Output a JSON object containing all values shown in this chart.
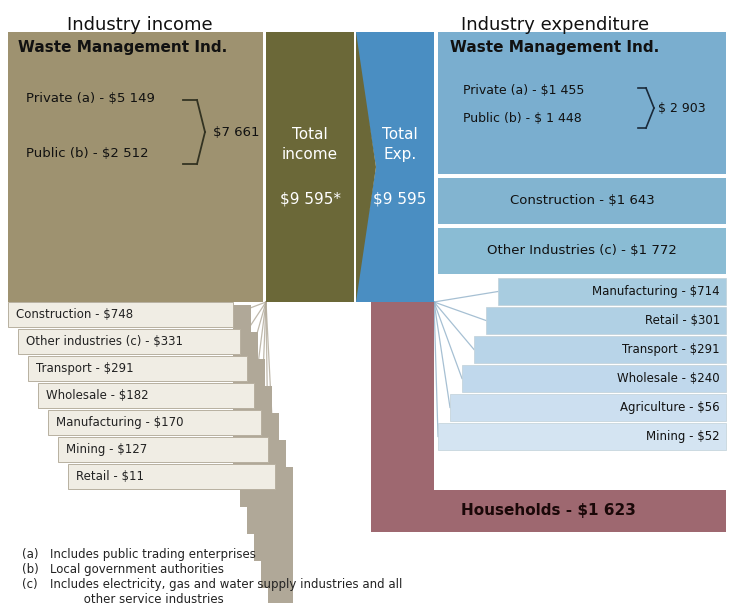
{
  "title_left": "Industry income",
  "title_right": "Industry expenditure",
  "bg_color": "#ffffff",
  "left_big_box_color": "#9e9270",
  "left_big_box_title": "Waste Management Ind.",
  "left_big_item1": "Private (a) - $5 149",
  "left_big_item2": "Public (b) - $2 512",
  "left_big_brace_label": "$7 661",
  "center_left_color": "#6b6838",
  "center_left_l1": "Total",
  "center_left_l2": "income",
  "center_left_l3": "$9 595*",
  "center_right_color": "#4a8ec2",
  "center_right_l1": "Total",
  "center_right_l2": "Exp.",
  "center_right_l3": "$9 595",
  "right_big_box_color": "#7aaecf",
  "right_big_title": "Waste Management Ind.",
  "right_big_item1": "Private (a) - $1 455",
  "right_big_item2": "Public (b) - $ 1 448",
  "right_big_brace": "$ 2 903",
  "right_construction_color": "#82b4d0",
  "right_construction_label": "Construction - $1 643",
  "right_other_color": "#8abcd4",
  "right_other_label": "Other Industries (c) - $1 772",
  "right_small_items": [
    {
      "label": "Manufacturing - $714",
      "color": "#a8cce0"
    },
    {
      "label": "Retail - $301",
      "color": "#b0d0e4"
    },
    {
      "label": "Transport - $291",
      "color": "#b8d4e8"
    },
    {
      "label": "Wholesale - $240",
      "color": "#c0d8ec"
    },
    {
      "label": "Agriculture - $56",
      "color": "#ccdff0"
    },
    {
      "label": "Mining - $52",
      "color": "#d4e4f2"
    }
  ],
  "left_small_items": [
    {
      "label": "Construction - $748"
    },
    {
      "label": "Other industries (c) - $331"
    },
    {
      "label": "Transport - $291"
    },
    {
      "label": "Wholesale - $182"
    },
    {
      "label": "Manufacturing - $170"
    },
    {
      "label": "Mining - $127"
    },
    {
      "label": "Retail - $11"
    }
  ],
  "left_small_box_fill": "#f0ede4",
  "left_small_box_border": "#b8b0a0",
  "left_small_text_color": "#222222",
  "household_color": "#9e6870",
  "household_label": "Households - $1 623",
  "pipe_color": "#9e6870",
  "connector_color_left": "#b0a898",
  "connector_color_right": "#90b0c8",
  "footnote_color": "#222222",
  "footnote_star_color": "#8B0000",
  "title_color": "#111111",
  "arrow_white": "#ffffff"
}
